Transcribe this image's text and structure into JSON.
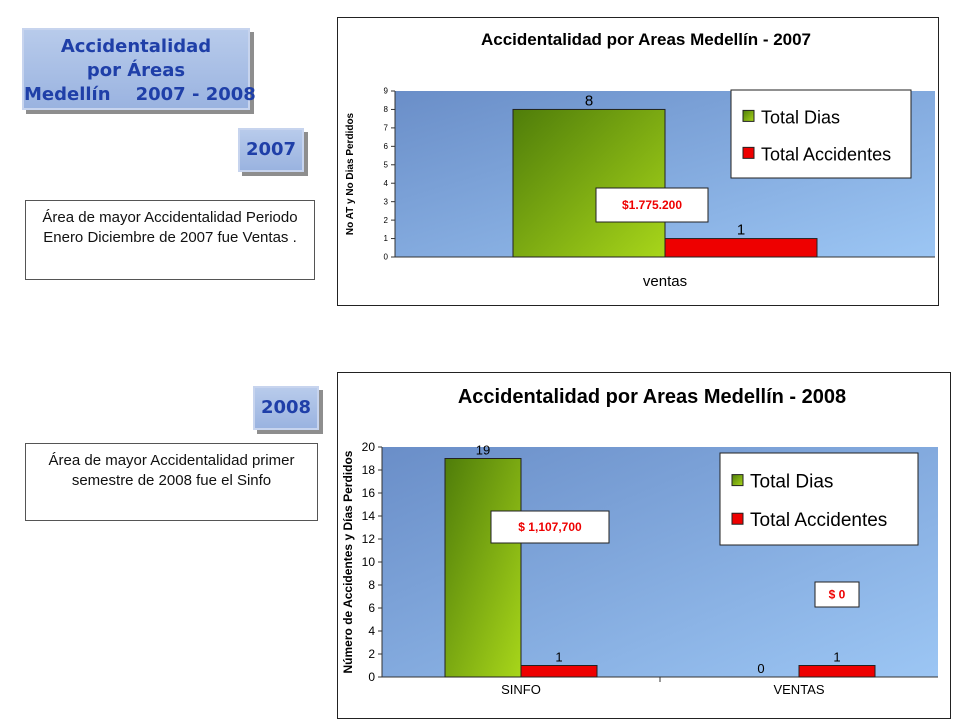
{
  "header": {
    "title_lines": [
      "Accidentalidad",
      "por Áreas",
      "Medellín    2007 - 2008"
    ],
    "year_2007": "2007",
    "year_2008": "2008"
  },
  "notes": {
    "note_2007": "Área de mayor Accidentalidad Periodo Enero Diciembre de 2007 fue Ventas .",
    "note_2008": "Área de mayor Accidentalidad primer semestre de 2008 fue el Sinfo"
  },
  "colors": {
    "days": "#7fae1c",
    "accidents": "#ee0000",
    "plot_bg": "#8fb0e0"
  },
  "chart_data": [
    {
      "type": "bar",
      "title": "Accidentalidad por Areas Medellín - 2007",
      "xlabel": "",
      "ylabel": "No AT y No Dias Perdidos",
      "categories": [
        "ventas"
      ],
      "series": [
        {
          "name": "Total Dias",
          "values": [
            8
          ]
        },
        {
          "name": "Total Accidentes",
          "values": [
            1
          ]
        }
      ],
      "ylim": [
        0,
        9
      ],
      "yticks": [
        0,
        1,
        2,
        3,
        4,
        5,
        6,
        7,
        8,
        9
      ],
      "annotations": [
        "$1.775.200"
      ],
      "legend": "right",
      "grid": false
    },
    {
      "type": "bar",
      "title": "Accidentalidad por Areas Medellín - 2008",
      "xlabel": "",
      "ylabel": "Número de Accidentes y Días Perdidos",
      "categories": [
        "SINFO",
        "VENTAS"
      ],
      "series": [
        {
          "name": "Total Dias",
          "values": [
            19,
            0
          ]
        },
        {
          "name": "Total Accidentes",
          "values": [
            1,
            1
          ]
        }
      ],
      "ylim": [
        0,
        20
      ],
      "yticks": [
        0,
        2,
        4,
        6,
        8,
        10,
        12,
        14,
        16,
        18,
        20
      ],
      "annotations": [
        "$ 1,107,700",
        "$ 0"
      ],
      "legend": "right",
      "grid": false
    }
  ]
}
